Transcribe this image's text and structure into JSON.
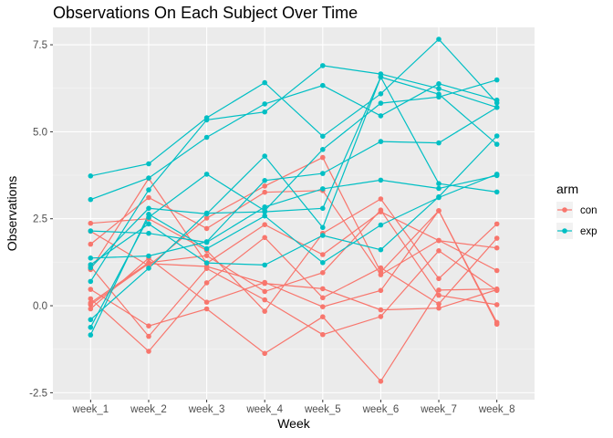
{
  "chart_data": {
    "type": "line",
    "title": "Observations On Each Subject Over Time",
    "xlabel": "Week",
    "ylabel": "Observations",
    "categories": [
      "week_1",
      "week_2",
      "week_3",
      "week_4",
      "week_5",
      "week_6",
      "week_7",
      "week_8"
    ],
    "ylim": [
      -2.7,
      8.0
    ],
    "yticks": [
      "-2.5",
      "0.0",
      "2.5",
      "5.0",
      "7.5"
    ],
    "grid": true,
    "legend": {
      "title": "arm",
      "position": "right",
      "entries": [
        {
          "label": "con",
          "color": "#F8766D"
        },
        {
          "label": "exp",
          "color": "#00BFC4"
        }
      ]
    },
    "series": [
      {
        "group": "con",
        "values": [
          0.2,
          -1.31,
          0.66,
          1.96,
          0.23,
          1.09,
          0.05,
          1.94
        ]
      },
      {
        "group": "con",
        "values": [
          1.13,
          -0.88,
          1.07,
          0.17,
          -0.83,
          -0.31,
          1.58,
          0.44
        ]
      },
      {
        "group": "con",
        "values": [
          1.77,
          3.11,
          2.22,
          3.26,
          3.31,
          0.89,
          1.88,
          1.01
        ]
      },
      {
        "group": "con",
        "values": [
          1.04,
          3.66,
          1.22,
          2.33,
          1.47,
          2.7,
          1.87,
          1.66
        ]
      },
      {
        "group": "con",
        "values": [
          0.47,
          -0.58,
          -0.09,
          -1.37,
          -0.32,
          -2.17,
          0.45,
          0.48
        ]
      },
      {
        "group": "con",
        "values": [
          2.37,
          2.5,
          1.59,
          -0.16,
          2.08,
          3.07,
          0.78,
          2.35
        ]
      },
      {
        "group": "con",
        "values": [
          0.03,
          1.21,
          1.13,
          0.64,
          0.49,
          -0.12,
          -0.07,
          0.46
        ]
      },
      {
        "group": "con",
        "values": [
          -0.09,
          1.37,
          0.1,
          0.67,
          -0.03,
          0.44,
          2.73,
          -0.48
        ]
      },
      {
        "group": "con",
        "values": [
          0.08,
          1.24,
          1.44,
          0.41,
          0.95,
          2.75,
          0.3,
          0.03
        ]
      },
      {
        "group": "con",
        "values": [
          2.14,
          1.15,
          2.52,
          3.44,
          4.26,
          0.97,
          2.73,
          -0.53
        ]
      },
      {
        "group": "exp",
        "values": [
          3.05,
          3.67,
          4.84,
          5.8,
          6.33,
          5.46,
          6.38,
          5.91
        ]
      },
      {
        "group": "exp",
        "values": [
          -0.84,
          2.63,
          1.64,
          2.58,
          1.24,
          2.32,
          3.11,
          3.78
        ]
      },
      {
        "group": "exp",
        "values": [
          2.15,
          2.08,
          1.82,
          2.84,
          3.36,
          3.61,
          3.37,
          3.74
        ]
      },
      {
        "group": "exp",
        "values": [
          -0.62,
          2.54,
          3.78,
          2.73,
          4.49,
          5.82,
          6.0,
          6.49
        ]
      },
      {
        "group": "exp",
        "values": [
          0.7,
          3.33,
          5.34,
          5.57,
          6.9,
          6.66,
          6.24,
          5.7
        ]
      },
      {
        "group": "exp",
        "values": [
          3.73,
          4.08,
          5.4,
          6.41,
          4.87,
          6.09,
          7.66,
          5.83
        ]
      },
      {
        "group": "exp",
        "values": [
          1.18,
          2.35,
          1.23,
          1.17,
          2.02,
          1.61,
          3.13,
          4.88
        ]
      },
      {
        "group": "exp",
        "values": [
          1.37,
          1.43,
          1.84,
          3.6,
          3.8,
          4.72,
          4.68,
          5.7
        ]
      },
      {
        "group": "exp",
        "values": [
          -0.4,
          1.08,
          2.66,
          2.7,
          2.8,
          6.57,
          6.08,
          4.64
        ]
      },
      {
        "group": "exp",
        "values": [
          1.09,
          2.8,
          2.64,
          4.3,
          2.25,
          6.57,
          3.51,
          3.27
        ]
      }
    ]
  }
}
